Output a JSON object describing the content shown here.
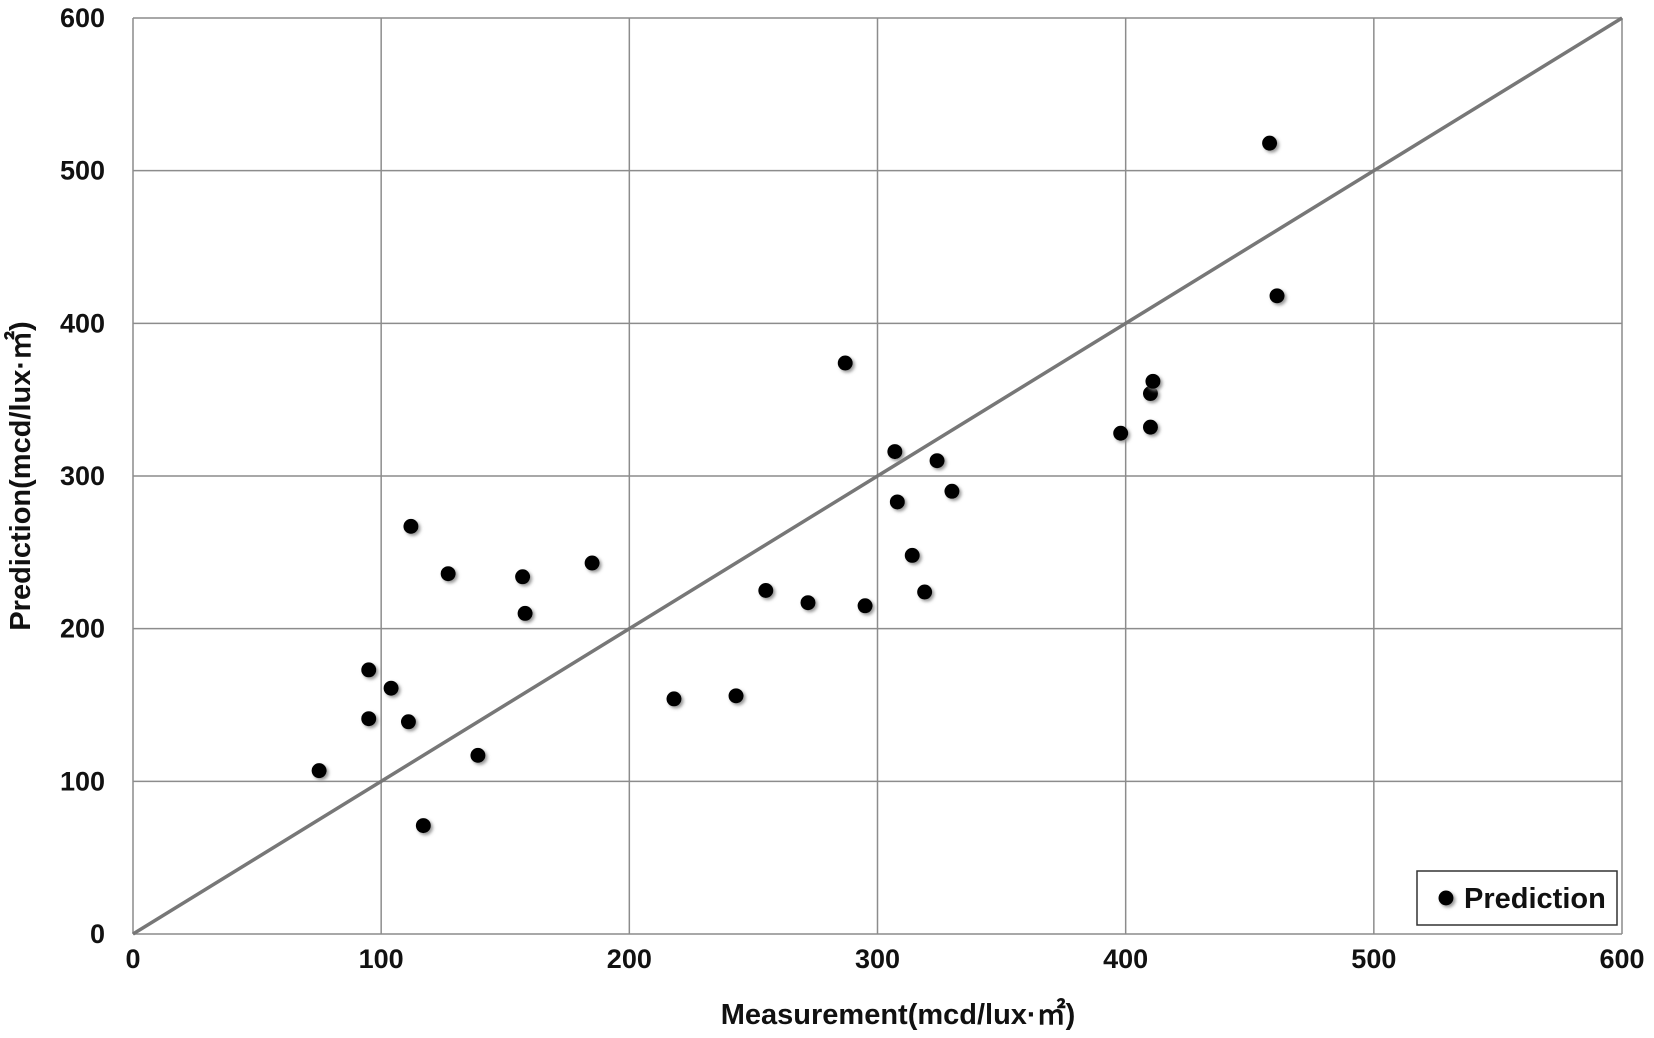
{
  "chart_data": {
    "type": "scatter",
    "xlabel": "Measurement(mcd/lux·㎡)",
    "ylabel": "Prediction(mcd/lux·㎡)",
    "xlim": [
      0,
      600
    ],
    "ylim": [
      0,
      600
    ],
    "xticks": [
      "0",
      "100",
      "200",
      "300",
      "400",
      "500",
      "600"
    ],
    "yticks": [
      "0",
      "100",
      "200",
      "300",
      "400",
      "500",
      "600"
    ],
    "grid": true,
    "legend": {
      "position": "bottom-right",
      "entries": [
        "Prediction"
      ]
    },
    "reference_line": {
      "label": "y = x",
      "from": [
        0,
        0
      ],
      "to": [
        600,
        600
      ],
      "color": "#777777"
    },
    "marker_color": "#000000",
    "series": [
      {
        "name": "Prediction",
        "points": [
          [
            75,
            107
          ],
          [
            95,
            173
          ],
          [
            95,
            141
          ],
          [
            104,
            161
          ],
          [
            111,
            139
          ],
          [
            112,
            267
          ],
          [
            117,
            71
          ],
          [
            127,
            236
          ],
          [
            139,
            117
          ],
          [
            157,
            234
          ],
          [
            158,
            210
          ],
          [
            185,
            243
          ],
          [
            218,
            154
          ],
          [
            243,
            156
          ],
          [
            255,
            225
          ],
          [
            272,
            217
          ],
          [
            287,
            374
          ],
          [
            295,
            215
          ],
          [
            307,
            316
          ],
          [
            308,
            283
          ],
          [
            314,
            248
          ],
          [
            319,
            224
          ],
          [
            324,
            310
          ],
          [
            330,
            290
          ],
          [
            398,
            328
          ],
          [
            410,
            354
          ],
          [
            410,
            332
          ],
          [
            411,
            362
          ],
          [
            458,
            518
          ],
          [
            461,
            418
          ]
        ]
      }
    ]
  }
}
